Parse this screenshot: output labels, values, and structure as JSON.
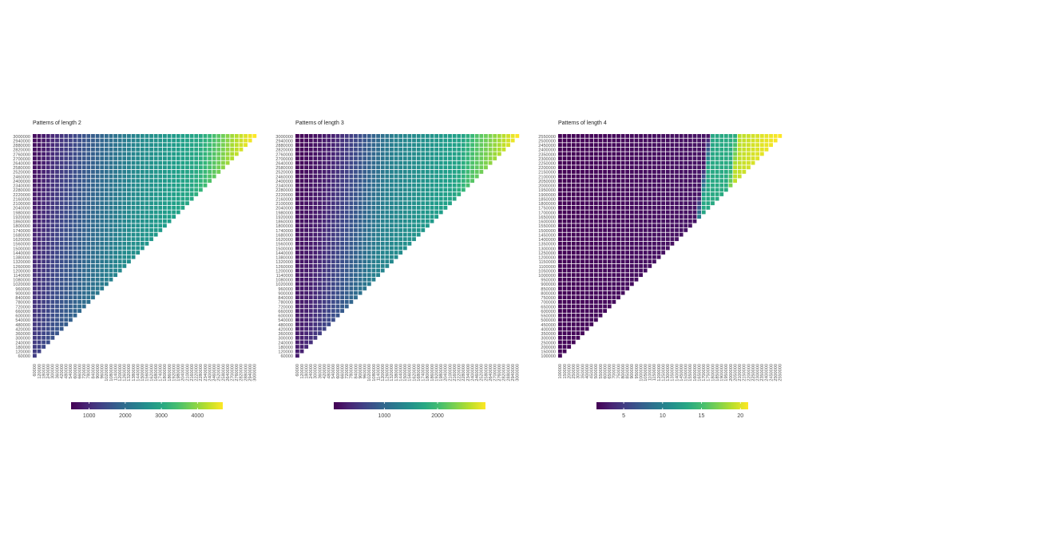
{
  "chart_data": [
    {
      "type": "heatmap",
      "title": "Patterns of length 2",
      "row_start": 60000,
      "row_step": 60000,
      "row_count": 50,
      "col_start": 60000,
      "col_step": 60000,
      "col_count": 50,
      "shape": "lower-left triangle",
      "value_range": [
        500,
        4700
      ],
      "color_breaks": [
        {
          "col": 0,
          "value": 600
        },
        {
          "col": 10,
          "value": 1500
        },
        {
          "col": 24,
          "value": 2500
        },
        {
          "col": 37,
          "value": 3000
        },
        {
          "col": 41,
          "value": 3600
        },
        {
          "col": 44,
          "value": 4100
        },
        {
          "col": 47,
          "value": 4500
        },
        {
          "col": 49,
          "value": 4700
        }
      ],
      "legend": {
        "ticks": [
          1000,
          2000,
          3000,
          4000
        ]
      }
    },
    {
      "type": "heatmap",
      "title": "Patterns of length 3",
      "row_start": 60000,
      "row_step": 60000,
      "row_count": 50,
      "col_start": 60000,
      "col_step": 60000,
      "col_count": 50,
      "shape": "lower-left triangle",
      "value_range": [
        50,
        2900
      ],
      "color_breaks": [
        {
          "col": 0,
          "value": 50
        },
        {
          "col": 8,
          "value": 300
        },
        {
          "col": 22,
          "value": 1300
        },
        {
          "col": 37,
          "value": 1700
        },
        {
          "col": 40,
          "value": 2100
        },
        {
          "col": 45,
          "value": 2500
        },
        {
          "col": 49,
          "value": 2900
        }
      ],
      "legend": {
        "ticks": [
          1000,
          2000
        ]
      }
    },
    {
      "type": "heatmap",
      "title": "Patterns of length 4",
      "row_start": 100000,
      "row_step": 50000,
      "row_count": 50,
      "col_start": 100000,
      "col_step": 50000,
      "col_count": 50,
      "shape": "lower-left triangle",
      "value_range": [
        1.5,
        21
      ],
      "color_breaks": [
        {
          "col": 0,
          "value": 1.5
        },
        {
          "col": 33,
          "value": 2.5
        },
        {
          "col": 34,
          "value": 13
        },
        {
          "col": 39,
          "value": 13.5
        },
        {
          "col": 40,
          "value": 19
        },
        {
          "col": 49,
          "value": 21
        }
      ],
      "legend": {
        "ticks": [
          5,
          10,
          15,
          20
        ]
      }
    }
  ],
  "palette": [
    "#440154",
    "#482878",
    "#3e4989",
    "#31688e",
    "#26828e",
    "#1f9e89",
    "#35b779",
    "#6ece58",
    "#b5de2b",
    "#fde725"
  ]
}
